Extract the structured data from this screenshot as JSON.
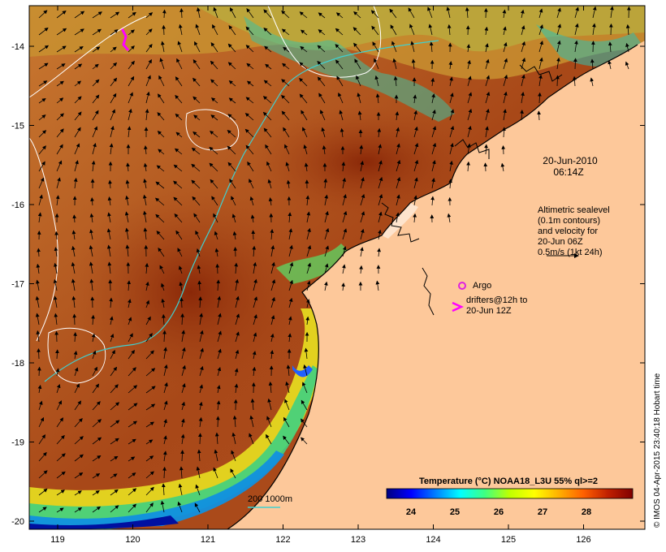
{
  "map": {
    "x_ticks": [
      "119",
      "120",
      "121",
      "122",
      "123",
      "124",
      "125",
      "126"
    ],
    "y_ticks": [
      "-14",
      "-15",
      "-16",
      "-17",
      "-18",
      "-19",
      "-20"
    ]
  },
  "annotations": {
    "date_line1": "20-Jun-2010",
    "date_line2": "06:14Z",
    "sealevel_lines": [
      "Altimetric sealevel",
      "(0.1m contours)",
      "and velocity for",
      "20-Jun 06Z",
      "0.5m/s (1kt 24h)"
    ],
    "argo_label": "Argo",
    "drifters_line1": "drifters@12h to",
    "drifters_line2": "20-Jun 12Z",
    "bathy_label": "200  1000m"
  },
  "colorbar": {
    "title": "Temperature (°C) NOAA18_L3U 55% ql>=2",
    "ticks": [
      "24",
      "25",
      "26",
      "27",
      "28"
    ],
    "colors": [
      "#000080",
      "#0000ff",
      "#0080ff",
      "#00ffff",
      "#40ff80",
      "#c0ff00",
      "#ffff00",
      "#ffb000",
      "#ff6000",
      "#c02000",
      "#800000"
    ]
  },
  "credit": "© IMOS 04-Apr-2015 23:40:18 Hobart time"
}
